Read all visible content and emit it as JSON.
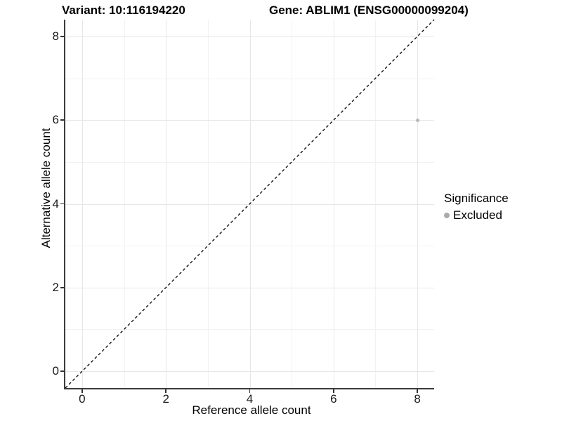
{
  "chart_data": {
    "type": "scatter",
    "title_left": "Variant: 10:116194220",
    "title_right": "Gene: ABLIM1 (ENSG00000099204)",
    "xlabel": "Reference allele count",
    "ylabel": "Alternative allele count",
    "x_domain": [
      -0.4,
      8.4
    ],
    "y_domain": [
      -0.4,
      8.4
    ],
    "x_ticks": [
      0,
      2,
      4,
      6,
      8
    ],
    "y_ticks": [
      0,
      2,
      4,
      6,
      8
    ],
    "x_minor_ticks": [
      1,
      3,
      5,
      7
    ],
    "y_minor_ticks": [
      1,
      3,
      5,
      7
    ],
    "grid": true,
    "legend_position": "right",
    "identity_line": {
      "style": "dashed",
      "color": "#000000"
    },
    "series": [
      {
        "name": "Excluded",
        "color": "#b9b9b9",
        "points": [
          {
            "x": 8,
            "y": 6
          }
        ]
      }
    ],
    "legend": {
      "title": "Significance",
      "items": [
        {
          "label": "Excluded",
          "color": "#aaaaaa"
        }
      ]
    }
  },
  "colors": {
    "background": "#ffffff",
    "grid_major": "#e7e7e7",
    "grid_minor": "#f2f2f2",
    "axis_line": "#3c3c3c",
    "tick_text": "#1a1a1a",
    "identity_line": "#000000",
    "point": "#b9b9b9"
  }
}
